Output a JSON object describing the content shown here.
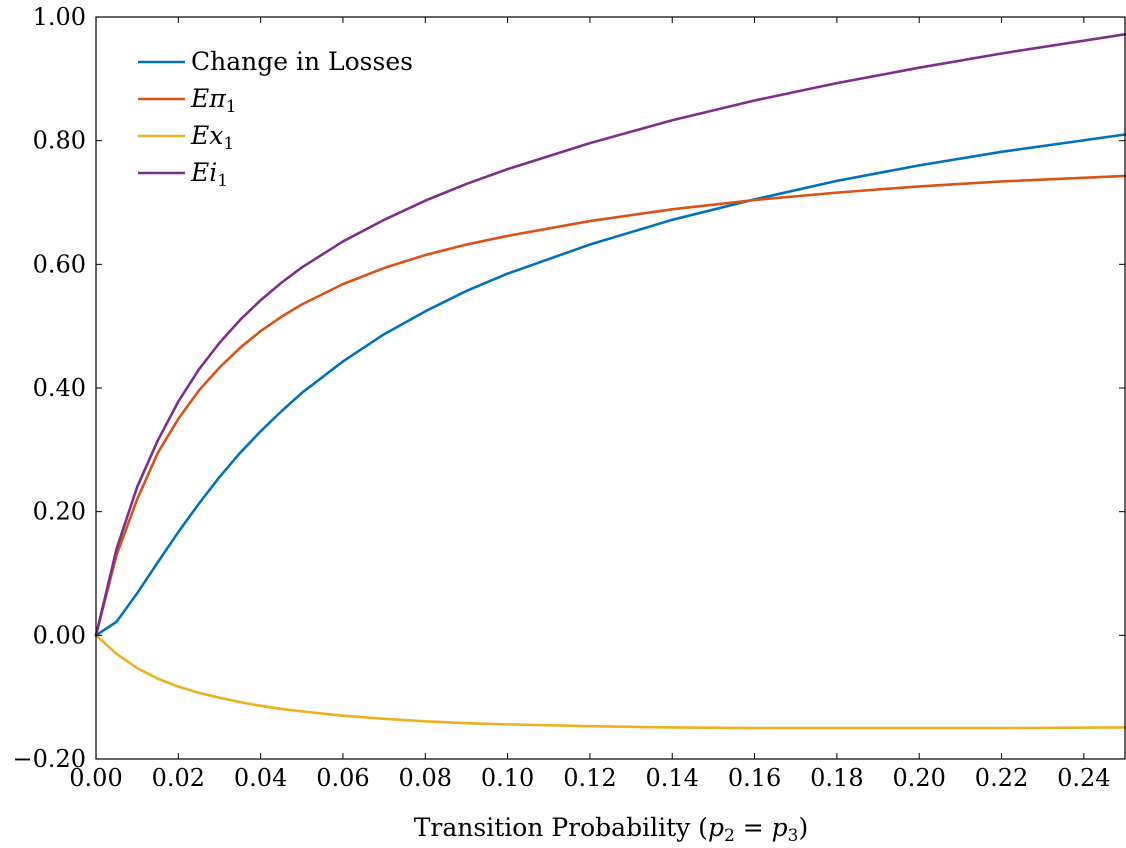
{
  "chart_data": {
    "type": "line",
    "xlabel": "Transition Probability (p₂ = p₃)",
    "ylabel": "",
    "xlim": [
      0,
      0.25
    ],
    "ylim": [
      -0.2,
      1.0
    ],
    "x_ticks": [
      "0.00",
      "0.02",
      "0.04",
      "0.06",
      "0.08",
      "0.10",
      "0.12",
      "0.14",
      "0.16",
      "0.18",
      "0.20",
      "0.22",
      "0.24"
    ],
    "y_ticks": [
      "−0.20",
      "0.00",
      "0.20",
      "0.40",
      "0.60",
      "0.80",
      "1.00"
    ],
    "x_tick_values": [
      0,
      0.02,
      0.04,
      0.06,
      0.08,
      0.1,
      0.12,
      0.14,
      0.16,
      0.18,
      0.2,
      0.22,
      0.24
    ],
    "y_tick_values": [
      -0.2,
      0,
      0.2,
      0.4,
      0.6,
      0.8,
      1.0
    ],
    "grid": false,
    "legend_position": "top-left",
    "series": [
      {
        "name": "Change in Losses",
        "color": "#0072bd",
        "x": [
          0,
          0.005,
          0.01,
          0.015,
          0.02,
          0.025,
          0.03,
          0.035,
          0.04,
          0.045,
          0.05,
          0.06,
          0.07,
          0.08,
          0.09,
          0.1,
          0.12,
          0.14,
          0.16,
          0.18,
          0.2,
          0.22,
          0.25
        ],
        "y": [
          0,
          0.022,
          0.068,
          0.118,
          0.167,
          0.213,
          0.256,
          0.295,
          0.33,
          0.362,
          0.392,
          0.443,
          0.487,
          0.524,
          0.557,
          0.585,
          0.632,
          0.672,
          0.705,
          0.735,
          0.76,
          0.782,
          0.81
        ]
      },
      {
        "name": "Eπ1",
        "color": "#d95319",
        "x": [
          0,
          0.005,
          0.01,
          0.015,
          0.02,
          0.025,
          0.03,
          0.035,
          0.04,
          0.045,
          0.05,
          0.06,
          0.07,
          0.08,
          0.09,
          0.1,
          0.12,
          0.14,
          0.16,
          0.18,
          0.2,
          0.22,
          0.25
        ],
        "y": [
          0,
          0.13,
          0.22,
          0.295,
          0.35,
          0.396,
          0.433,
          0.465,
          0.492,
          0.515,
          0.535,
          0.568,
          0.594,
          0.615,
          0.632,
          0.646,
          0.67,
          0.689,
          0.704,
          0.716,
          0.726,
          0.734,
          0.743
        ]
      },
      {
        "name": "Ex1",
        "color": "#edb120",
        "x": [
          0,
          0.005,
          0.01,
          0.015,
          0.02,
          0.025,
          0.03,
          0.035,
          0.04,
          0.045,
          0.05,
          0.06,
          0.07,
          0.08,
          0.09,
          0.1,
          0.12,
          0.14,
          0.16,
          0.18,
          0.2,
          0.22,
          0.25
        ],
        "y": [
          0,
          -0.03,
          -0.053,
          -0.07,
          -0.083,
          -0.093,
          -0.101,
          -0.108,
          -0.114,
          -0.119,
          -0.123,
          -0.13,
          -0.135,
          -0.139,
          -0.142,
          -0.144,
          -0.147,
          -0.149,
          -0.15,
          -0.15,
          -0.15,
          -0.15,
          -0.149
        ]
      },
      {
        "name": "Ei1",
        "color": "#7e2f8e",
        "x": [
          0,
          0.005,
          0.01,
          0.015,
          0.02,
          0.025,
          0.03,
          0.035,
          0.04,
          0.045,
          0.05,
          0.06,
          0.07,
          0.08,
          0.09,
          0.1,
          0.12,
          0.14,
          0.16,
          0.18,
          0.2,
          0.22,
          0.25
        ],
        "y": [
          0,
          0.14,
          0.24,
          0.315,
          0.378,
          0.43,
          0.473,
          0.51,
          0.542,
          0.57,
          0.595,
          0.637,
          0.672,
          0.703,
          0.73,
          0.754,
          0.796,
          0.833,
          0.865,
          0.893,
          0.918,
          0.941,
          0.972
        ]
      }
    ]
  },
  "legend": {
    "items": [
      {
        "label": "Change in Losses",
        "base": "Change in Losses",
        "sub": ""
      },
      {
        "label": "Eπ1",
        "base": "Eπ",
        "sub": "1"
      },
      {
        "label": "Ex1",
        "base": "Ex",
        "sub": "1"
      },
      {
        "label": "Ei1",
        "base": "Ei",
        "sub": "1"
      }
    ]
  },
  "xlabel_parts": {
    "prefix": "Transition Probability (",
    "p": "p",
    "sub_a": "2",
    "eq": " = ",
    "sub_b": "3",
    "suffix": ")"
  }
}
